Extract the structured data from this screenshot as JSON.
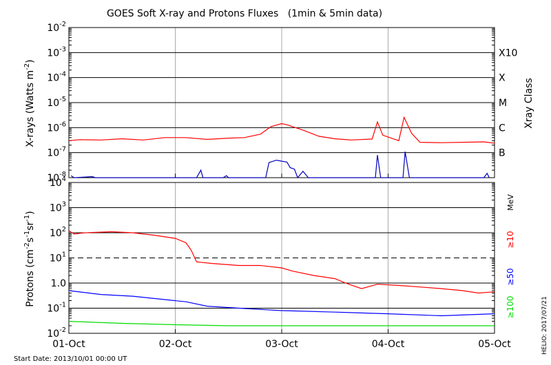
{
  "title": "GOES Soft X-ray and Protons Fluxes   (1min & 5min data)",
  "footer_left": "Start Date: 2013/10/01 00:00 UT",
  "footer_right": "HELIO: 2017/07/21",
  "chart_data": [
    {
      "type": "line",
      "panel": "xray",
      "ylabel": "X-rays (Watts m",
      "ylabel_sup": "-2",
      "ylabel_end": ")",
      "yscale": "log",
      "ylim": [
        1e-08,
        0.01
      ],
      "xlim_days": [
        0,
        4
      ],
      "yticks": [
        {
          "base": "10",
          "exp": "-8"
        },
        {
          "base": "10",
          "exp": "-7"
        },
        {
          "base": "10",
          "exp": "-6"
        },
        {
          "base": "10",
          "exp": "-5"
        },
        {
          "base": "10",
          "exp": "-4"
        },
        {
          "base": "10",
          "exp": "-3"
        },
        {
          "base": "10",
          "exp": "-2"
        }
      ],
      "right_axis_label": "Xray Class",
      "right_ticks": [
        "B",
        "C",
        "M",
        "X",
        "X10"
      ],
      "series": [
        {
          "color": "#ff0000",
          "points": [
            [
              0,
              3e-07
            ],
            [
              0.1,
              3.3e-07
            ],
            [
              0.3,
              3.2e-07
            ],
            [
              0.5,
              3.6e-07
            ],
            [
              0.7,
              3.2e-07
            ],
            [
              0.9,
              4e-07
            ],
            [
              1.1,
              4e-07
            ],
            [
              1.3,
              3.4e-07
            ],
            [
              1.5,
              3.8e-07
            ],
            [
              1.65,
              4e-07
            ],
            [
              1.8,
              5.5e-07
            ],
            [
              1.9,
              1.1e-06
            ],
            [
              2.0,
              1.45e-06
            ],
            [
              2.05,
              1.3e-06
            ],
            [
              2.2,
              8e-07
            ],
            [
              2.35,
              4.5e-07
            ],
            [
              2.5,
              3.6e-07
            ],
            [
              2.65,
              3.2e-07
            ],
            [
              2.85,
              3.5e-07
            ],
            [
              2.9,
              1.7e-06
            ],
            [
              2.95,
              5e-07
            ],
            [
              3.1,
              3e-07
            ],
            [
              3.15,
              2.6e-06
            ],
            [
              3.22,
              6e-07
            ],
            [
              3.3,
              2.6e-07
            ],
            [
              3.5,
              2.5e-07
            ],
            [
              3.7,
              2.6e-07
            ],
            [
              3.9,
              2.7e-07
            ],
            [
              4.0,
              2.4e-07
            ]
          ]
        },
        {
          "color": "#0000bb",
          "points": [
            [
              0.02,
              1.2e-08
            ],
            [
              0.05,
              1e-08
            ],
            [
              0.22,
              1.1e-08
            ],
            [
              0.25,
              1e-08
            ],
            [
              1.2,
              1e-08
            ],
            [
              1.24,
              2e-08
            ],
            [
              1.26,
              1e-08
            ],
            [
              1.45,
              1e-08
            ],
            [
              1.48,
              1.2e-08
            ],
            [
              1.5,
              1e-08
            ],
            [
              1.85,
              1e-08
            ],
            [
              1.88,
              4e-08
            ],
            [
              1.95,
              5e-08
            ],
            [
              2.05,
              4.2e-08
            ],
            [
              2.08,
              2.5e-08
            ],
            [
              2.12,
              2.2e-08
            ],
            [
              2.15,
              1e-08
            ],
            [
              2.2,
              1.8e-08
            ],
            [
              2.25,
              1e-08
            ],
            [
              2.88,
              1e-08
            ],
            [
              2.9,
              8e-08
            ],
            [
              2.93,
              1e-08
            ],
            [
              3.14,
              1e-08
            ],
            [
              3.16,
              1.1e-07
            ],
            [
              3.2,
              1e-08
            ],
            [
              3.9,
              1e-08
            ],
            [
              3.93,
              1.5e-08
            ],
            [
              3.95,
              1e-08
            ]
          ]
        }
      ]
    },
    {
      "type": "line",
      "panel": "protons",
      "ylabel": "Protons (cm",
      "ylabel_sup": "-2",
      "ylabel_mid": "s",
      "ylabel_sup2": "-1",
      "ylabel_mid2": "sr",
      "ylabel_sup3": "-1",
      "ylabel_end": ")",
      "yscale": "log",
      "ylim": [
        0.01,
        10000
      ],
      "xlim_days": [
        0,
        4
      ],
      "yticks": [
        "10-2",
        "10-1",
        "10⁰",
        "10¹",
        "10²",
        "10³",
        "10⁴"
      ],
      "ytick_labels": [
        {
          "base": "10",
          "exp": "-2"
        },
        {
          "base": "10",
          "exp": "-1"
        },
        {
          "text": "1.0"
        },
        {
          "base": "10",
          "exp": "1"
        },
        {
          "base": "10",
          "exp": "2"
        },
        {
          "base": "10",
          "exp": "3"
        },
        {
          "base": "10",
          "exp": "4"
        }
      ],
      "threshold": 10,
      "right_unit": "MeV",
      "series": [
        {
          "name": "≥100",
          "color": "#00dd00",
          "points": [
            [
              0,
              0.03
            ],
            [
              0.5,
              0.025
            ],
            [
              1.0,
              0.022
            ],
            [
              1.5,
              0.02
            ],
            [
              2.0,
              0.02
            ],
            [
              2.5,
              0.02
            ],
            [
              3.0,
              0.02
            ],
            [
              3.5,
              0.02
            ],
            [
              4.0,
              0.02
            ]
          ]
        },
        {
          "name": "≥50",
          "color": "#0000ff",
          "points": [
            [
              0,
              0.5
            ],
            [
              0.3,
              0.35
            ],
            [
              0.6,
              0.3
            ],
            [
              0.9,
              0.22
            ],
            [
              1.1,
              0.18
            ],
            [
              1.3,
              0.12
            ],
            [
              1.6,
              0.1
            ],
            [
              2.0,
              0.08
            ],
            [
              2.5,
              0.07
            ],
            [
              3.0,
              0.06
            ],
            [
              3.5,
              0.05
            ],
            [
              4.0,
              0.06
            ]
          ]
        },
        {
          "name": "≥10",
          "color": "#ff0000",
          "points": [
            [
              0,
              120
            ],
            [
              0.05,
              90
            ],
            [
              0.15,
              100
            ],
            [
              0.4,
              110
            ],
            [
              0.6,
              100
            ],
            [
              0.8,
              80
            ],
            [
              1.0,
              60
            ],
            [
              1.1,
              40
            ],
            [
              1.15,
              20
            ],
            [
              1.2,
              7
            ],
            [
              1.35,
              6
            ],
            [
              1.6,
              5
            ],
            [
              1.8,
              5
            ],
            [
              2.0,
              4
            ],
            [
              2.1,
              3
            ],
            [
              2.3,
              2
            ],
            [
              2.5,
              1.5
            ],
            [
              2.6,
              1
            ],
            [
              2.75,
              0.6
            ],
            [
              2.9,
              0.9
            ],
            [
              3.1,
              0.8
            ],
            [
              3.3,
              0.7
            ],
            [
              3.5,
              0.6
            ],
            [
              3.7,
              0.5
            ],
            [
              3.85,
              0.4
            ],
            [
              4.0,
              0.45
            ]
          ]
        }
      ]
    }
  ],
  "x_ticks": [
    "01-Oct",
    "02-Oct",
    "03-Oct",
    "04-Oct",
    "05-Oct"
  ]
}
